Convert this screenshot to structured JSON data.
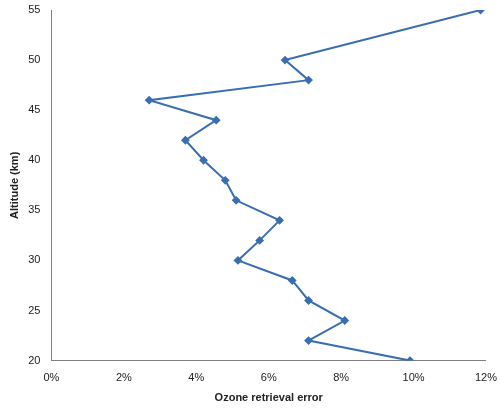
{
  "chart_data": {
    "type": "line",
    "x_label": "Ozone retrieval error",
    "y_label": "Altitude (km)",
    "x": [
      11.85,
      6.45,
      7.1,
      2.7,
      4.55,
      3.7,
      4.2,
      4.8,
      5.1,
      6.3,
      5.75,
      5.15,
      6.65,
      7.1,
      8.1,
      7.1,
      9.9
    ],
    "values": [
      55,
      50,
      48,
      46,
      44,
      42,
      40,
      38,
      36,
      34,
      32,
      30,
      28,
      26,
      24,
      22,
      20
    ],
    "color": "#3a6eb0",
    "marker": "diamond",
    "xlim": [
      0,
      12
    ],
    "xticks": [
      {
        "value": 0,
        "label": "0%"
      },
      {
        "value": 2,
        "label": "2%"
      },
      {
        "value": 4,
        "label": "4%"
      },
      {
        "value": 6,
        "label": "6%"
      },
      {
        "value": 8,
        "label": "8%"
      },
      {
        "value": 10,
        "label": "10%"
      },
      {
        "value": 12,
        "label": "12%"
      }
    ],
    "ylim": [
      20,
      55
    ],
    "yticks": [
      20,
      25,
      30,
      35,
      40,
      45,
      50,
      55
    ],
    "grid": false
  }
}
